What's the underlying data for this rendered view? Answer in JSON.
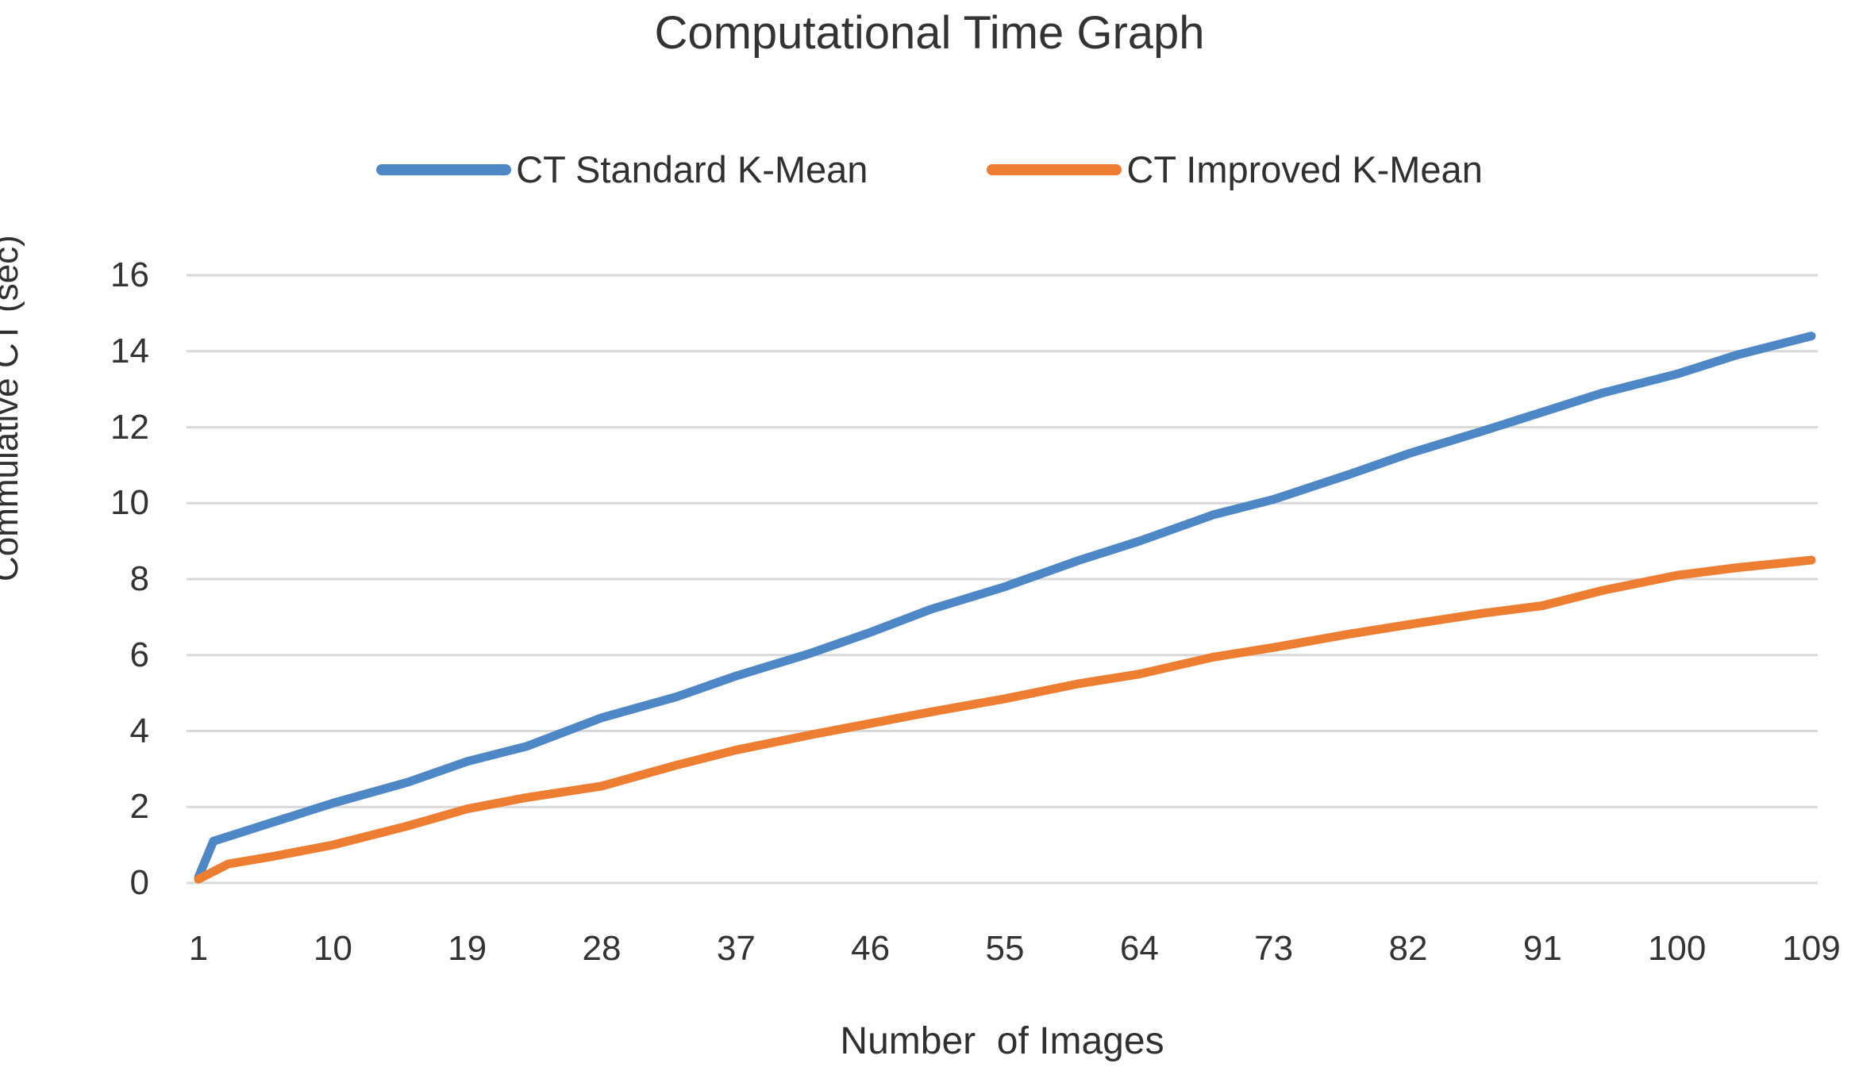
{
  "chart_data": {
    "type": "line",
    "title": "Computational Time Graph",
    "xlabel": "Number  of Images",
    "ylabel": "Commulative CT (sec)",
    "x_ticks": [
      1,
      10,
      19,
      28,
      37,
      46,
      55,
      64,
      73,
      82,
      91,
      100,
      109
    ],
    "y_ticks": [
      0,
      2,
      4,
      6,
      8,
      10,
      12,
      14,
      16
    ],
    "xlim": [
      1,
      109
    ],
    "ylim": [
      0,
      16
    ],
    "grid": "horizontal-only",
    "legend_position": "top-center",
    "series": [
      {
        "name": "CT Standard K-Mean",
        "color": "#4E87C5",
        "x": [
          1,
          2,
          6,
          10,
          15,
          19,
          23,
          28,
          33,
          37,
          42,
          46,
          50,
          55,
          60,
          64,
          69,
          73,
          78,
          82,
          87,
          91,
          95,
          100,
          104,
          109
        ],
        "y": [
          0.15,
          1.1,
          1.6,
          2.1,
          2.65,
          3.2,
          3.6,
          4.35,
          4.9,
          5.45,
          6.05,
          6.6,
          7.2,
          7.8,
          8.5,
          9.0,
          9.7,
          10.1,
          10.75,
          11.3,
          11.9,
          12.4,
          12.9,
          13.4,
          13.9,
          14.4
        ]
      },
      {
        "name": "CT Improved K-Mean",
        "color": "#ED7D31",
        "x": [
          1,
          2,
          3,
          6,
          10,
          15,
          19,
          23,
          28,
          33,
          37,
          42,
          46,
          50,
          55,
          60,
          64,
          69,
          73,
          78,
          82,
          87,
          91,
          95,
          100,
          104,
          109
        ],
        "y": [
          0.1,
          0.3,
          0.5,
          0.7,
          1.0,
          1.5,
          1.95,
          2.25,
          2.55,
          3.1,
          3.5,
          3.9,
          4.2,
          4.5,
          4.85,
          5.25,
          5.5,
          5.95,
          6.2,
          6.55,
          6.8,
          7.1,
          7.3,
          7.7,
          8.1,
          8.3,
          8.5
        ]
      }
    ],
    "colors": {
      "grid": "#D9D9D9",
      "text": "#333333",
      "background": "#FFFFFF"
    }
  }
}
